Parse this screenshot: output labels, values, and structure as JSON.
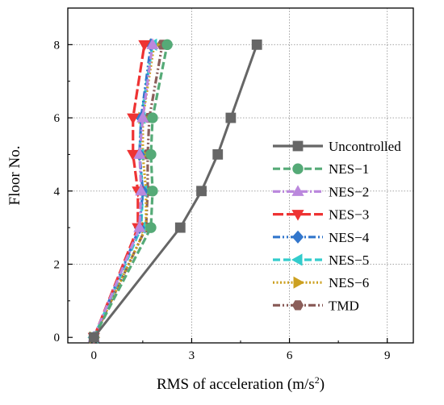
{
  "chart_data": {
    "type": "line",
    "title": "",
    "xlabel": "RMS of acceleration (m/s",
    "xlabel_sup": "2",
    "xlabel_end": ")",
    "ylabel": "Floor No.",
    "xlim": [
      -0.8,
      9.8
    ],
    "ylim": [
      -0.15,
      9.0
    ],
    "x_ticks": [
      0,
      3,
      6,
      9
    ],
    "x_tick_labels": [
      "0",
      "3",
      "6",
      "9"
    ],
    "y_ticks": [
      0,
      2,
      4,
      6,
      8
    ],
    "y_tick_labels": [
      "0",
      "2",
      "4",
      "6",
      "8"
    ],
    "grid": true,
    "legend_position": "right",
    "series": [
      {
        "name": "Uncontrolled",
        "color": "#666666",
        "marker": "square",
        "dash": "solid",
        "x": [
          0,
          2.65,
          3.3,
          3.8,
          4.2,
          5.0
        ],
        "y": [
          0,
          3,
          4,
          5,
          6,
          8
        ]
      },
      {
        "name": "NES−1",
        "color": "#55aa77",
        "marker": "circle",
        "dash": "dash",
        "x": [
          0,
          1.75,
          1.8,
          1.75,
          1.8,
          2.25
        ],
        "y": [
          0,
          3,
          4,
          5,
          6,
          8
        ]
      },
      {
        "name": "NES−2",
        "color": "#bb88dd",
        "marker": "triangle-up",
        "dash": "dashdot",
        "x": [
          0,
          1.4,
          1.45,
          1.4,
          1.5,
          1.8
        ],
        "y": [
          0,
          3,
          4,
          5,
          6,
          8
        ]
      },
      {
        "name": "NES−3",
        "color": "#ee3333",
        "marker": "triangle-down",
        "dash": "longdash",
        "x": [
          0,
          1.35,
          1.35,
          1.2,
          1.2,
          1.55
        ],
        "y": [
          0,
          3,
          4,
          5,
          6,
          8
        ]
      },
      {
        "name": "NES−4",
        "color": "#3377cc",
        "marker": "diamond",
        "dash": "dashdotdot",
        "x": [
          0,
          1.4,
          1.5,
          1.4,
          1.45,
          1.75
        ],
        "y": [
          0,
          3,
          4,
          5,
          6,
          8
        ]
      },
      {
        "name": "NES−5",
        "color": "#33cccc",
        "marker": "triangle-left",
        "dash": "dash",
        "x": [
          0,
          1.45,
          1.5,
          1.4,
          1.45,
          1.8
        ],
        "y": [
          0,
          3,
          4,
          5,
          6,
          8
        ]
      },
      {
        "name": "NES−6",
        "color": "#cca020",
        "marker": "triangle-right",
        "dash": "dot",
        "x": [
          0,
          1.6,
          1.6,
          1.5,
          1.5,
          1.85
        ],
        "y": [
          0,
          3,
          4,
          5,
          6,
          8
        ]
      },
      {
        "name": "TMD",
        "color": "#8b5e5a",
        "marker": "hexagon",
        "dash": "dashdotdot",
        "x": [
          0,
          1.6,
          1.65,
          1.65,
          1.7,
          2.1
        ],
        "y": [
          0,
          3,
          4,
          5,
          6,
          8
        ]
      }
    ]
  }
}
